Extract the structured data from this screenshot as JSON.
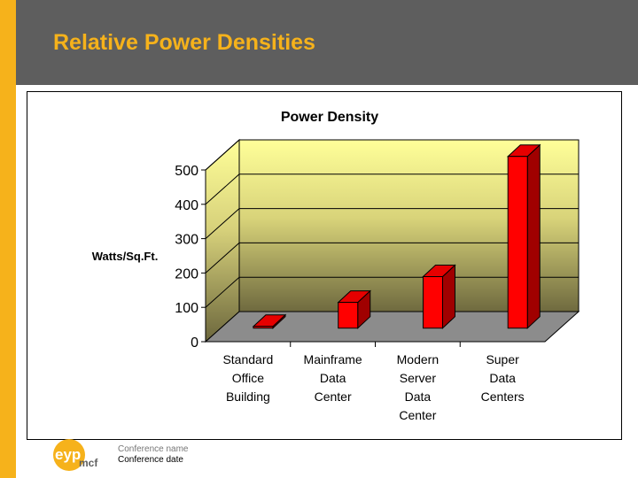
{
  "slide": {
    "title": "Relative Power Densities"
  },
  "footer": {
    "logo_text_1": "eyp",
    "logo_text_2": "mcf",
    "conference_name": "Conference name",
    "conference_date": "Conference date"
  },
  "colors": {
    "accent": "#f6b21b",
    "header": "#5e5e5e",
    "bar": "#e60000"
  },
  "chart_data": {
    "type": "bar",
    "title": "Power Density",
    "ylabel": "Watts/Sq.Ft.",
    "xlabel": "",
    "ylim": [
      0,
      500
    ],
    "yticks": [
      0,
      100,
      200,
      300,
      400,
      500
    ],
    "grid": true,
    "categories": [
      [
        "Standard",
        "Office",
        "Building"
      ],
      [
        "Mainframe",
        "Data",
        "Center"
      ],
      [
        "Modern",
        "Server",
        "Data",
        "Center"
      ],
      [
        "Super",
        "Data",
        "Centers"
      ]
    ],
    "values": [
      5,
      75,
      150,
      500
    ]
  }
}
